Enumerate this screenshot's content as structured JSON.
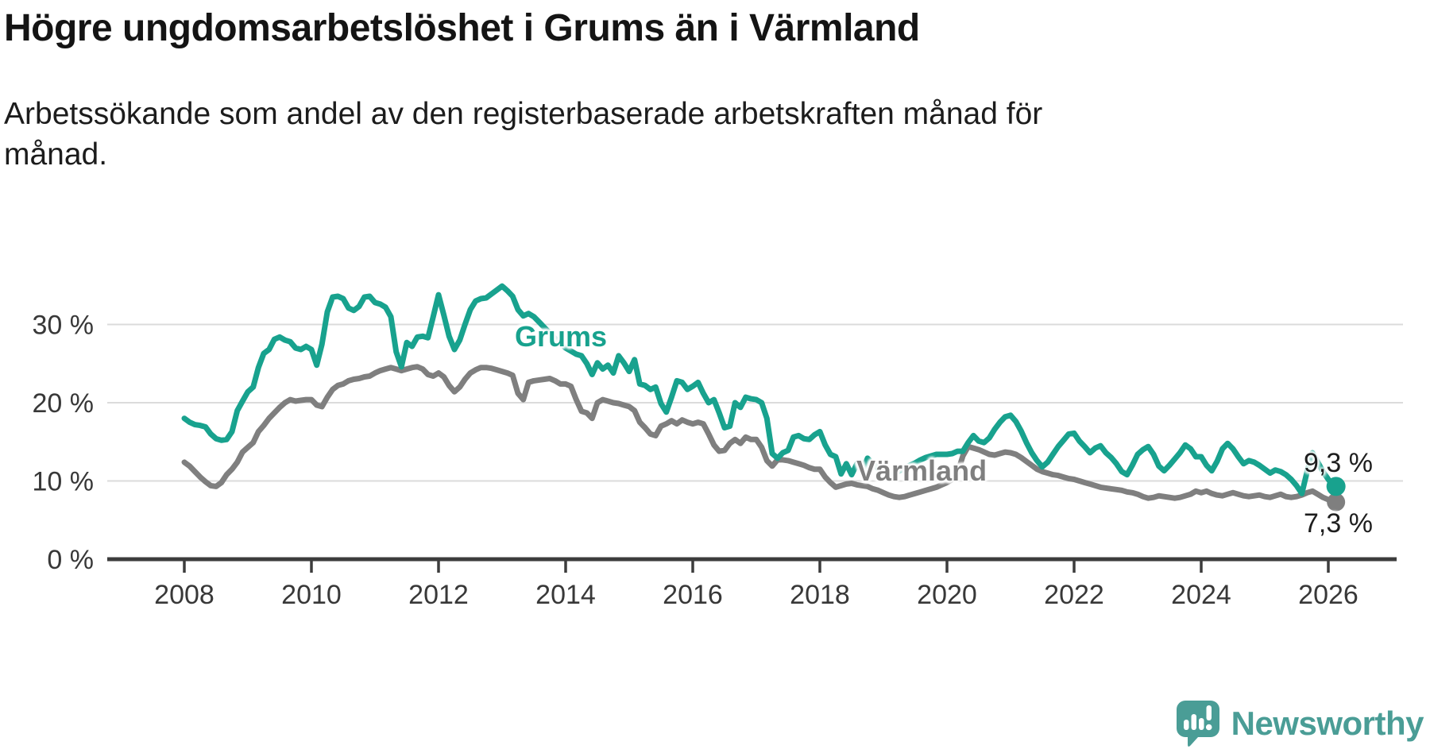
{
  "header": {
    "title": "Högre ungdomsarbetslöshet i Grums än i Värmland",
    "subtitle_line1": "Arbetssökande som andel av den registerbaserade arbetskraften månad för",
    "subtitle_line2": "månad."
  },
  "colors": {
    "grums": "#18A28E",
    "varmland": "#7F7F7F",
    "gridline": "#DBDBDB",
    "axis": "#3C3C3C",
    "tick_text": "#383838",
    "value_text": "#1E1E1E",
    "brand_teal": "#4A9D96"
  },
  "chart_data": {
    "type": "line",
    "title": "Högre ungdomsarbetslöshet i Grums än i Värmland",
    "subtitle": "Arbetssökande som andel av den registerbaserade arbetskraften månad för månad.",
    "unit": "%",
    "frequency": "monthly",
    "x_start": "2008-01",
    "x_end": "2026-02",
    "grid": true,
    "legend": "inline-labels",
    "ylim": [
      0,
      36
    ],
    "yticks": [
      0,
      10,
      20,
      30
    ],
    "ytick_suffix": " %",
    "xticks": [
      2008,
      2010,
      2012,
      2014,
      2016,
      2018,
      2020,
      2022,
      2024,
      2026
    ],
    "series": [
      {
        "name": "Värmland",
        "color": "#7F7F7F",
        "end_label": "7,3 %",
        "last_value": 7.3,
        "values": [
          12.4,
          11.9,
          11.2,
          10.5,
          9.9,
          9.4,
          9.3,
          9.8,
          10.8,
          11.5,
          12.4,
          13.7,
          14.3,
          14.9,
          16.3,
          17.1,
          18.0,
          18.7,
          19.4,
          20.0,
          20.4,
          20.2,
          20.3,
          20.4,
          20.4,
          19.7,
          19.5,
          20.7,
          21.7,
          22.2,
          22.4,
          22.8,
          23.0,
          23.1,
          23.3,
          23.4,
          23.8,
          24.1,
          24.3,
          24.5,
          24.3,
          24.1,
          24.3,
          24.5,
          24.6,
          24.3,
          23.6,
          23.4,
          23.8,
          23.3,
          22.2,
          21.4,
          22.0,
          23.0,
          23.8,
          24.2,
          24.5,
          24.5,
          24.4,
          24.2,
          24.0,
          23.8,
          23.5,
          21.2,
          20.4,
          22.6,
          22.8,
          22.9,
          23.0,
          23.1,
          22.8,
          22.4,
          22.4,
          22.1,
          20.4,
          18.9,
          18.7,
          18.0,
          20.0,
          20.4,
          20.2,
          20.0,
          19.9,
          19.7,
          19.5,
          19.0,
          17.5,
          16.8,
          16.0,
          15.8,
          17.0,
          17.3,
          17.7,
          17.3,
          17.8,
          17.5,
          17.3,
          17.5,
          17.3,
          16.0,
          14.6,
          13.8,
          13.9,
          14.8,
          15.3,
          14.8,
          15.6,
          15.3,
          15.3,
          14.3,
          12.6,
          11.9,
          12.7,
          12.7,
          12.6,
          12.4,
          12.2,
          12.0,
          11.7,
          11.5,
          11.5,
          10.5,
          9.8,
          9.2,
          9.4,
          9.6,
          9.7,
          9.5,
          9.4,
          9.3,
          9.0,
          8.8,
          8.5,
          8.2,
          8.0,
          7.9,
          8.0,
          8.2,
          8.4,
          8.6,
          8.8,
          9.0,
          9.2,
          9.5,
          9.8,
          10.2,
          11.0,
          13.2,
          14.4,
          14.2,
          14.0,
          13.7,
          13.4,
          13.3,
          13.5,
          13.7,
          13.6,
          13.4,
          13.0,
          12.5,
          12.0,
          11.5,
          11.2,
          11.0,
          10.8,
          10.7,
          10.5,
          10.3,
          10.2,
          10.0,
          9.8,
          9.6,
          9.4,
          9.2,
          9.1,
          9.0,
          8.9,
          8.8,
          8.6,
          8.5,
          8.3,
          8.0,
          7.8,
          7.9,
          8.1,
          8.0,
          7.9,
          7.8,
          7.9,
          8.1,
          8.3,
          8.7,
          8.5,
          8.7,
          8.4,
          8.2,
          8.1,
          8.3,
          8.5,
          8.3,
          8.1,
          8.0,
          8.1,
          8.2,
          8.0,
          7.9,
          8.1,
          8.3,
          8.0,
          7.9,
          8.0,
          8.2,
          8.5,
          8.7,
          8.3,
          7.9,
          7.6,
          7.3
        ]
      },
      {
        "name": "Grums",
        "color": "#18A28E",
        "end_label": "9,3 %",
        "last_value": 9.3,
        "values": [
          18.0,
          17.5,
          17.2,
          17.1,
          16.9,
          16.0,
          15.4,
          15.2,
          15.3,
          16.3,
          19.0,
          20.2,
          21.4,
          22.0,
          24.5,
          26.3,
          26.8,
          28.1,
          28.4,
          28.0,
          27.8,
          27.0,
          26.8,
          27.2,
          26.8,
          24.8,
          27.5,
          31.6,
          33.5,
          33.6,
          33.3,
          32.1,
          31.8,
          32.3,
          33.5,
          33.6,
          32.8,
          32.6,
          32.2,
          31.0,
          26.5,
          24.6,
          27.7,
          27.2,
          28.4,
          28.5,
          28.3,
          31.0,
          33.8,
          31.2,
          28.5,
          26.8,
          28.0,
          30.0,
          31.9,
          33.0,
          33.3,
          33.4,
          33.9,
          34.4,
          34.9,
          34.3,
          33.6,
          31.9,
          31.1,
          31.4,
          31.0,
          30.3,
          29.6,
          28.9,
          28.2,
          27.6,
          27.0,
          26.6,
          26.2,
          26.0,
          25.0,
          23.6,
          25.1,
          24.3,
          24.8,
          23.8,
          26.0,
          25.1,
          24.0,
          25.5,
          22.4,
          22.2,
          21.7,
          22.0,
          19.9,
          18.8,
          20.7,
          22.8,
          22.6,
          21.7,
          22.1,
          22.6,
          21.2,
          20.0,
          20.4,
          18.7,
          16.8,
          17.0,
          20.0,
          19.4,
          20.7,
          20.5,
          20.4,
          20.0,
          18.0,
          13.5,
          12.9,
          13.6,
          13.9,
          15.6,
          15.8,
          15.4,
          15.3,
          15.9,
          16.3,
          14.6,
          13.4,
          13.1,
          10.9,
          12.2,
          10.8,
          12.2,
          11.2,
          12.9,
          12.2,
          11.6,
          11.2,
          10.8,
          10.9,
          11.3,
          11.6,
          12.0,
          12.3,
          12.7,
          13.0,
          13.2,
          13.4,
          13.4,
          13.4,
          13.5,
          13.8,
          13.8,
          14.9,
          15.8,
          15.1,
          14.9,
          15.5,
          16.6,
          17.5,
          18.2,
          18.4,
          17.6,
          16.4,
          14.9,
          13.6,
          12.6,
          11.8,
          12.4,
          13.4,
          14.4,
          15.2,
          16.0,
          16.1,
          15.1,
          14.4,
          13.6,
          14.2,
          14.5,
          13.6,
          13.0,
          12.2,
          11.2,
          10.8,
          12.0,
          13.4,
          14.0,
          14.4,
          13.4,
          11.9,
          11.3,
          12.0,
          12.8,
          13.6,
          14.6,
          14.1,
          13.1,
          13.1,
          12.0,
          11.3,
          12.5,
          14.1,
          14.8,
          14.1,
          13.1,
          12.2,
          12.6,
          12.4,
          12.0,
          11.5,
          11.0,
          11.4,
          11.2,
          10.8,
          10.2,
          9.4,
          8.4,
          11.2,
          13.6,
          12.4,
          11.2,
          10.2,
          9.3
        ]
      }
    ]
  },
  "annotations": {
    "grums_label": "Grums",
    "varmland_label": "Värmland",
    "grums_end_value": "9,3 %",
    "varmland_end_value": "7,3 %"
  },
  "footer": {
    "brand": "Newsworthy"
  }
}
